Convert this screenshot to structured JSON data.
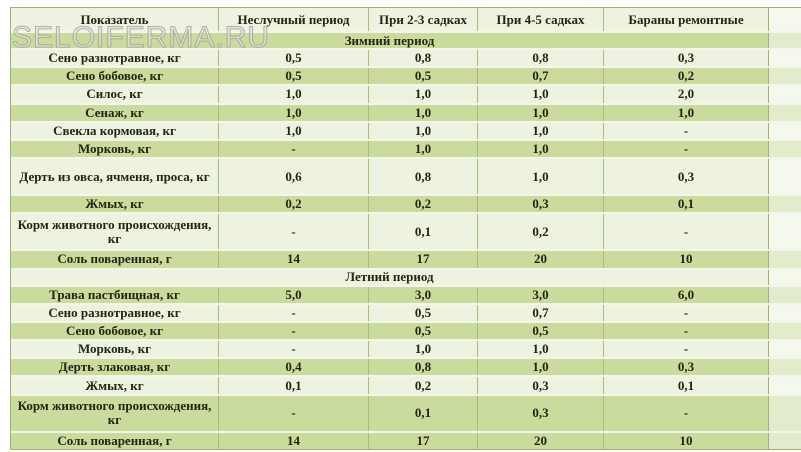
{
  "watermark": {
    "text": "SELOIFERMA.RU"
  },
  "colors": {
    "row_dark": "#cadb9e",
    "row_light": "#edf3e0",
    "cut_dark": "#e3ebcd",
    "cut_light": "#f5f8ed",
    "grid_line": "#a9bd7b",
    "outer_border": "#9fb273",
    "separator": "#f3f6e9",
    "text": "#232610"
  },
  "table": {
    "columns": [
      "Показатель",
      "Неслучный период",
      "При 2-3 садках",
      "При 4-5 садках",
      "Бараны ремонтные"
    ],
    "sections": [
      {
        "title": "Зимний период",
        "title_shade": "dark",
        "rows": [
          {
            "label": "Сено разнотравное, кг",
            "values": [
              "0,5",
              "0,8",
              "0,8",
              "0,3"
            ],
            "shade": "light",
            "tall": false
          },
          {
            "label": "Сено бобовое, кг",
            "values": [
              "0,5",
              "0,5",
              "0,7",
              "0,2"
            ],
            "shade": "dark",
            "tall": false
          },
          {
            "label": "Силос, кг",
            "values": [
              "1,0",
              "1,0",
              "1,0",
              "2,0"
            ],
            "shade": "light",
            "tall": false
          },
          {
            "label": "Сенаж, кг",
            "values": [
              "1,0",
              "1,0",
              "1,0",
              "1,0"
            ],
            "shade": "dark",
            "tall": false
          },
          {
            "label": "Свекла кормовая, кг",
            "values": [
              "1,0",
              "1,0",
              "1,0",
              "-"
            ],
            "shade": "light",
            "tall": false
          },
          {
            "label": "Морковь, кг",
            "values": [
              "-",
              "1,0",
              "1,0",
              "-"
            ],
            "shade": "dark",
            "tall": false
          },
          {
            "label": "Дерть из овса, ячменя, проса, кг",
            "values": [
              "0,6",
              "0,8",
              "1,0",
              "0,3"
            ],
            "shade": "light",
            "tall": true
          },
          {
            "label": "Жмых, кг",
            "values": [
              "0,2",
              "0,2",
              "0,3",
              "0,1"
            ],
            "shade": "dark",
            "tall": false
          },
          {
            "label": "Корм животного происхождения, кг",
            "values": [
              "-",
              "0,1",
              "0,2",
              "-"
            ],
            "shade": "light",
            "tall": true
          },
          {
            "label": "Соль поваренная, г",
            "values": [
              "14",
              "17",
              "20",
              "10"
            ],
            "shade": "dark",
            "tall": false
          }
        ]
      },
      {
        "title": "Летний период",
        "title_shade": "light",
        "rows": [
          {
            "label": "Трава пастбищная, кг",
            "values": [
              "5,0",
              "3,0",
              "3,0",
              "6,0"
            ],
            "shade": "dark",
            "tall": false
          },
          {
            "label": "Сено разнотравное, кг",
            "values": [
              "-",
              "0,5",
              "0,7",
              "-"
            ],
            "shade": "light",
            "tall": false
          },
          {
            "label": "Сено бобовое, кг",
            "values": [
              "-",
              "0,5",
              "0,5",
              "-"
            ],
            "shade": "dark",
            "tall": false
          },
          {
            "label": "Морковь, кг",
            "values": [
              "-",
              "1,0",
              "1,0",
              "-"
            ],
            "shade": "light",
            "tall": false
          },
          {
            "label": "Дерть злаковая, кг",
            "values": [
              "0,4",
              "0,8",
              "1,0",
              "0,3"
            ],
            "shade": "dark",
            "tall": false
          },
          {
            "label": "Жмых, кг",
            "values": [
              "0,1",
              "0,2",
              "0,3",
              "0,1"
            ],
            "shade": "light",
            "tall": false
          },
          {
            "label": "Корм животного происхождения, кг",
            "values": [
              "-",
              "0,1",
              "0,3",
              "-"
            ],
            "shade": "dark",
            "tall": true
          },
          {
            "label": "Соль поваренная, г",
            "values": [
              "14",
              "17",
              "20",
              "10"
            ],
            "shade": "dark",
            "tall": false
          }
        ]
      }
    ]
  }
}
